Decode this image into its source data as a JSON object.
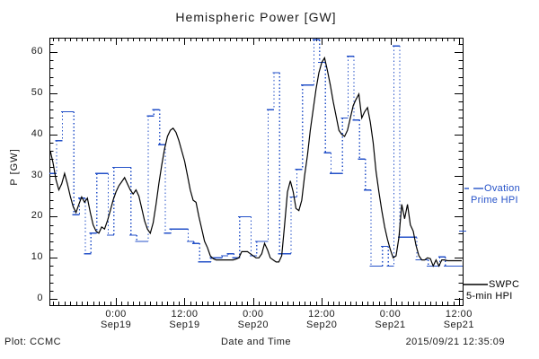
{
  "title": "Hemispheric Power [GW]",
  "colors": {
    "ovation_blue": "#2451c8",
    "swpc_black": "#000000",
    "background": "#ffffff"
  },
  "footer": {
    "plot_credit": "Plot: CCMC",
    "x_axis_title": "Date and Time",
    "timestamp": "2015/09/21 12:35:09"
  },
  "legend": {
    "ovation": {
      "line1": "Ovation",
      "line2": "Prime HPI"
    },
    "swpc": {
      "line1": "SWPC",
      "line2": "5-min HPI"
    }
  },
  "y_axis": {
    "label": "P [GW]",
    "major_ticks": [
      0,
      10,
      20,
      30,
      40,
      50,
      60
    ]
  },
  "x_axis": {
    "major_ticks": [
      {
        "hour": 24,
        "time": "0:00",
        "date": "Sep19"
      },
      {
        "hour": 36,
        "time": "12:00",
        "date": "Sep19"
      },
      {
        "hour": 48,
        "time": "0:00",
        "date": "Sep20"
      },
      {
        "hour": 60,
        "time": "12:00",
        "date": "Sep20"
      },
      {
        "hour": 72,
        "time": "0:00",
        "date": "Sep21"
      },
      {
        "hour": 84,
        "time": "12:00",
        "date": "Sep21"
      }
    ]
  },
  "chart_data": {
    "type": "line",
    "title": "Hemispheric Power [GW]",
    "xlabel": "Date and Time",
    "ylabel": "P [GW]",
    "ylim": [
      -1.5,
      63.5
    ],
    "y_major_step": 10,
    "y_minor_step": 2,
    "x_unit": "hours since 2015-09-18 00:00 UT",
    "xlim": [
      12.35,
      84.65
    ],
    "x_minor_step_hours": 1,
    "x_major_step_hours": 12,
    "grid": false,
    "legend_position": "right-outside",
    "series": [
      {
        "name": "Ovation Prime HPI",
        "color": "#2451c8",
        "style": "stepped-dash-dotted-risers",
        "x_start_hour": 13,
        "x_step_hours": 1,
        "values": [
          30.5,
          38.5,
          45.5,
          45.5,
          20.5,
          24.5,
          11,
          16,
          30.5,
          30.5,
          15.5,
          32,
          32,
          32,
          15.5,
          14,
          14,
          44.5,
          46,
          37.5,
          16,
          17,
          17,
          17,
          14,
          13.5,
          9,
          9,
          10,
          10,
          10.5,
          11,
          10,
          20,
          20,
          10.5,
          14,
          14,
          46,
          55,
          11,
          11,
          24.8,
          31.5,
          52,
          52,
          63,
          57.5,
          35.5,
          30.5,
          30.5,
          44,
          59,
          43.5,
          34,
          26.5,
          8,
          8,
          12.8,
          8,
          61.5,
          15,
          15,
          15,
          9.5,
          9.5,
          8,
          8,
          10.2,
          8,
          8,
          8
        ]
      },
      {
        "name": "SWPC 5-min HPI",
        "color": "#000000",
        "style": "solid-line",
        "x_start_hour": 12.5,
        "x_step_hours": 0.5,
        "values": [
          36,
          33,
          29,
          26.5,
          28,
          30.5,
          28,
          25,
          22.5,
          21,
          23,
          24.8,
          23.5,
          24.5,
          21,
          18,
          16.5,
          16,
          17.5,
          17,
          19,
          21.5,
          24,
          26,
          27.5,
          28.5,
          29.5,
          28,
          26.5,
          25.5,
          26.5,
          25,
          22,
          19,
          17,
          16,
          18.5,
          23,
          28,
          32.5,
          36.5,
          39.5,
          41,
          41.5,
          40.5,
          38.5,
          36,
          33.5,
          30,
          26.5,
          24,
          23.5,
          20,
          17,
          14,
          12.5,
          10.5,
          9.8,
          9.5,
          9.5,
          9.5,
          9.5,
          9.5,
          9.5,
          9.5,
          9.7,
          10,
          11.5,
          11.5,
          11.5,
          11,
          10.5,
          10,
          10,
          11,
          13.5,
          12,
          10,
          9.5,
          9,
          9,
          10.5,
          18,
          26,
          28.7,
          26,
          22,
          21.5,
          24,
          30,
          35,
          41,
          46,
          51,
          55,
          57.5,
          58.6,
          55.5,
          52,
          48,
          44.5,
          41,
          40,
          39.5,
          41,
          44,
          47,
          48.5,
          49.8,
          44,
          45.5,
          46.5,
          43,
          38,
          31,
          26,
          21.5,
          17.5,
          14.5,
          12,
          10,
          10.5,
          15,
          23,
          19.5,
          23,
          18,
          16.5,
          13,
          10.5,
          9.5,
          9.5,
          10,
          9.8,
          8,
          9.5,
          8,
          9.5,
          9.5,
          9.3,
          9.3,
          9.3,
          9.3,
          9.3,
          9.3
        ]
      }
    ]
  }
}
